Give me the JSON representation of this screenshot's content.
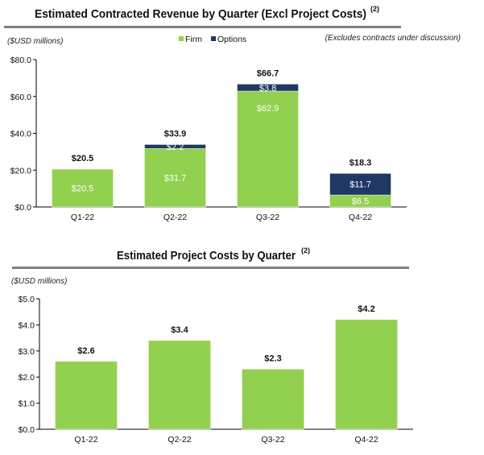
{
  "colors": {
    "firm": "#92d050",
    "options": "#1f3864",
    "rule": "#808080",
    "axis": "#000000"
  },
  "chart_data": [
    {
      "type": "bar",
      "stacked": true,
      "title": "Estimated Contracted Revenue by Quarter (Excl Project Costs)",
      "title_superscript": "(2)",
      "ylabel": "($USD millions)",
      "note": "(Excludes contracts under discussion)",
      "legend_position": "top",
      "categories": [
        "Q1-22",
        "Q2-22",
        "Q3-22",
        "Q4-22"
      ],
      "series": [
        {
          "name": "Firm",
          "values": [
            20.5,
            31.7,
            62.9,
            6.5
          ],
          "labels": [
            "$20.5",
            "$31.7",
            "$62.9",
            "$6.5"
          ]
        },
        {
          "name": "Options",
          "values": [
            0,
            2.2,
            3.8,
            11.7
          ],
          "labels": [
            "",
            "$2.2",
            "$3.8",
            "$11.7"
          ]
        }
      ],
      "totals": [
        "$20.5",
        "$33.9",
        "$66.7",
        "$18.3"
      ],
      "ylim": [
        0,
        80
      ],
      "yticks": [
        "$0.0",
        "$20.0",
        "$40.0",
        "$60.0",
        "$80.0"
      ],
      "grid": false
    },
    {
      "type": "bar",
      "title": "Estimated Project Costs by Quarter",
      "title_superscript": "(2)",
      "ylabel": "($USD millions)",
      "categories": [
        "Q1-22",
        "Q2-22",
        "Q3-22",
        "Q4-22"
      ],
      "values": [
        2.6,
        3.4,
        2.3,
        4.2
      ],
      "labels": [
        "$2.6",
        "$3.4",
        "$2.3",
        "$4.2"
      ],
      "ylim": [
        0,
        5
      ],
      "yticks": [
        "$0.0",
        "$1.0",
        "$2.0",
        "$3.0",
        "$4.0",
        "$5.0"
      ],
      "grid": false
    }
  ]
}
